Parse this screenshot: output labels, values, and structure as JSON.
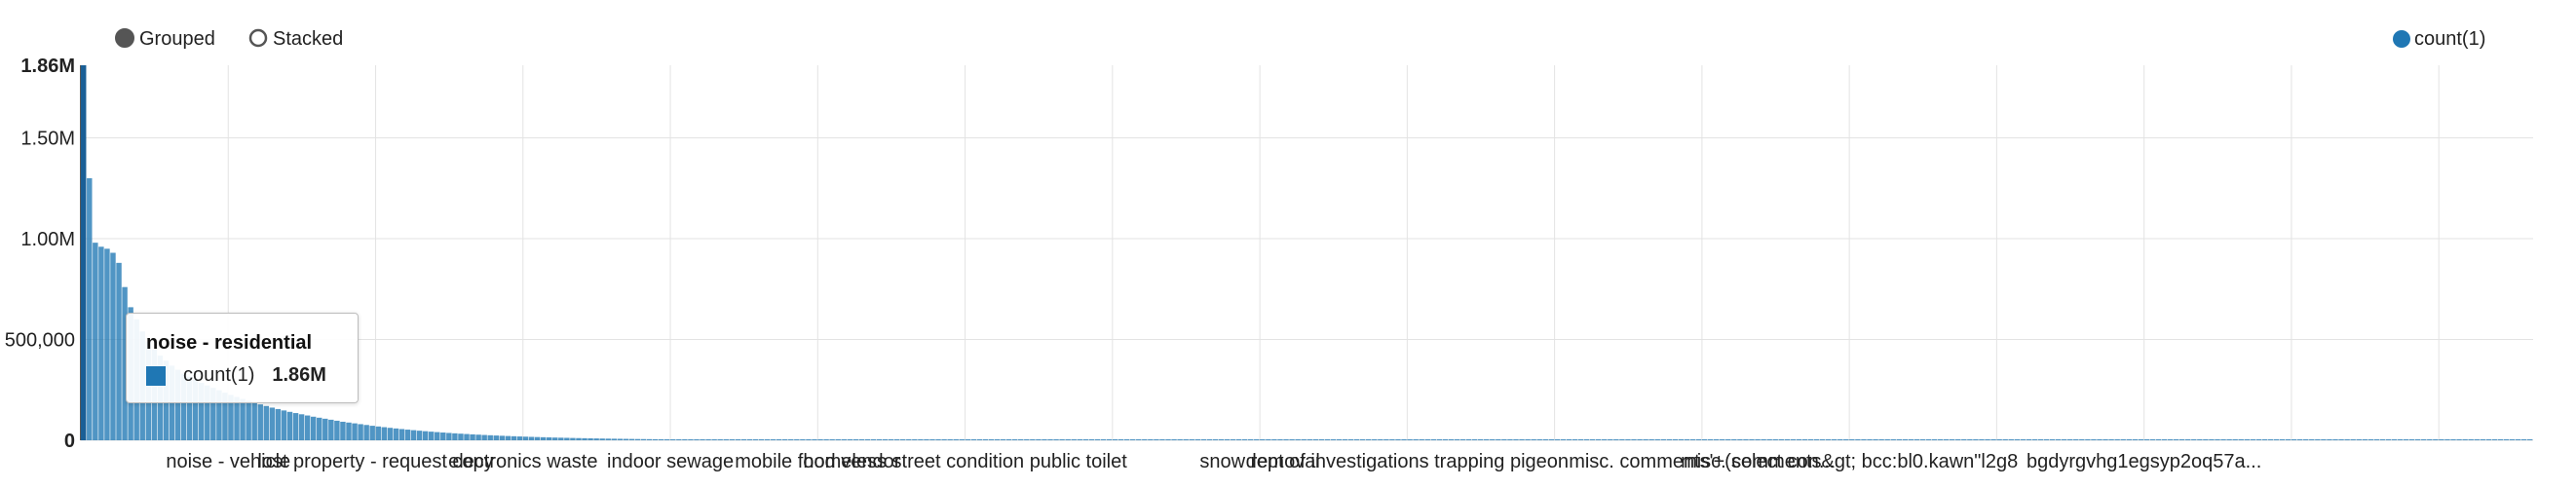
{
  "controls": {
    "grouped_label": "Grouped",
    "stacked_label": "Stacked",
    "selected": "grouped"
  },
  "legend": {
    "label": "count(1)",
    "color": "#1f77b4"
  },
  "tooltip": {
    "title": "noise - residential",
    "series": "count(1)",
    "value": "1.86M",
    "color": "#1f77b4"
  },
  "chart_data": {
    "type": "bar",
    "title": "",
    "xlabel": "",
    "ylabel": "",
    "ylim": [
      0,
      1860000
    ],
    "grid": true,
    "legend_position": "top-right",
    "y_ticks": [
      {
        "value": 0,
        "label": "0"
      },
      {
        "value": 500000,
        "label": "500,000"
      },
      {
        "value": 1000000,
        "label": "1.00M"
      },
      {
        "value": 1500000,
        "label": "1.50M"
      },
      {
        "value": 1860000,
        "label": "1.86M"
      }
    ],
    "x_tick_labels": [
      {
        "index": 25,
        "label": "noise - vehicle"
      },
      {
        "index": 50,
        "label": "lost property - request copy"
      },
      {
        "index": 75,
        "label": "electronics waste"
      },
      {
        "index": 100,
        "label": "indoor sewage"
      },
      {
        "index": 125,
        "label": "mobile food vendor"
      },
      {
        "index": 150,
        "label": "homeless street condition public toilet"
      },
      {
        "index": 200,
        "label": "snow removal"
      },
      {
        "index": 225,
        "label": "dept of investigations trapping pigeon"
      },
      {
        "index": 275,
        "label": "misc. comments'+(select con..."
      },
      {
        "index": 300,
        "label": "misc. comments&gt; bcc:bl0.kawn\"l2g8"
      },
      {
        "index": 350,
        "label": "bgdyrgvhg1egsyp2oq57a..."
      }
    ],
    "series": [
      {
        "name": "count(1)",
        "color": "#1f77b4",
        "values": [
          1860000,
          1300000,
          980000,
          960000,
          950000,
          930000,
          880000,
          760000,
          660000,
          600000,
          540000,
          490000,
          450000,
          420000,
          395000,
          370000,
          350000,
          330000,
          315000,
          300000,
          285000,
          272000,
          260000,
          248000,
          236000,
          225000,
          215000,
          205000,
          196000,
          187000,
          178000,
          170000,
          162000,
          155000,
          148000,
          141000,
          135000,
          129000,
          123000,
          117000,
          112000,
          107000,
          102000,
          97000,
          92000,
          88000,
          84000,
          80000,
          76000,
          72000,
          68500,
          65000,
          61800,
          58700,
          55700,
          52900,
          50200,
          47600,
          45100,
          42800,
          40600,
          38500,
          36500,
          34600,
          32800,
          31100,
          29500,
          27900,
          26400,
          25000,
          23700,
          22400,
          21200,
          20100,
          19000,
          18000,
          17000,
          16100,
          15200,
          14400,
          13600,
          12900,
          12200,
          11500,
          10900,
          10300,
          9700,
          9200,
          8700,
          8200,
          7800,
          7400,
          7000,
          6600,
          6200,
          5900,
          5600,
          5300,
          5000,
          4700,
          4450,
          4200,
          3980,
          3760,
          3550,
          3360,
          3170,
          3000,
          2830,
          2680,
          2530,
          2390,
          2260,
          2140,
          2020,
          1910,
          1800,
          1700,
          1610,
          1520,
          1440,
          1360,
          1280,
          1210,
          1150,
          1080,
          1020,
          970,
          910,
          860,
          820,
          770,
          730,
          690,
          650,
          620,
          580,
          550,
          520,
          490,
          470,
          440,
          420,
          390,
          370,
          350,
          330,
          310,
          300,
          280,
          260,
          250,
          240,
          220,
          210,
          200,
          190,
          180,
          170,
          160,
          150,
          145,
          137,
          129,
          122,
          115,
          109,
          103,
          97,
          92,
          87,
          82,
          77,
          73,
          69,
          65,
          62,
          58,
          55,
          52,
          49,
          46,
          44,
          41,
          39,
          37,
          35,
          33,
          31,
          29,
          28,
          26,
          25,
          23,
          22,
          21,
          20,
          19,
          18,
          17,
          16,
          15,
          14,
          13,
          13,
          12,
          11,
          11,
          10,
          10,
          9,
          9,
          8,
          8,
          7,
          7,
          7,
          6,
          6,
          6,
          5,
          5,
          5,
          5,
          4,
          4,
          4,
          4,
          4,
          3,
          3,
          3,
          3,
          3,
          3,
          3,
          2,
          2,
          2,
          2,
          2,
          2,
          2,
          2,
          2,
          2,
          2,
          2,
          2,
          2,
          2,
          2,
          2,
          2,
          1,
          1,
          1,
          1,
          1,
          1,
          1,
          1,
          1,
          1,
          1,
          1,
          1,
          1,
          1,
          1,
          1,
          1,
          1,
          1,
          1,
          1,
          1,
          1,
          1,
          1,
          1,
          1,
          1,
          1,
          1,
          1,
          1,
          1,
          1,
          1,
          1,
          1,
          1,
          1,
          1,
          1,
          1,
          1,
          1,
          1,
          1,
          1,
          1,
          1,
          1,
          1,
          1,
          1,
          1,
          1,
          1,
          1,
          1,
          1,
          1,
          1,
          1,
          1,
          1,
          1,
          1,
          1,
          1,
          1,
          1,
          1,
          1,
          1,
          1,
          1,
          1,
          1,
          1,
          1,
          1,
          1,
          1,
          1,
          1,
          1,
          1,
          1,
          1,
          1,
          1,
          1,
          1,
          1,
          1,
          1,
          1,
          1,
          1,
          1,
          1,
          1,
          1,
          1,
          1,
          1,
          1,
          1,
          1,
          1,
          1,
          1,
          1,
          1,
          1,
          1,
          1,
          1,
          1,
          1,
          1,
          1,
          1,
          1,
          1,
          1,
          1,
          1,
          1,
          1,
          1,
          1,
          1,
          1,
          1,
          1,
          1,
          1,
          1,
          1,
          1,
          1,
          1,
          1,
          1,
          1,
          1,
          1,
          1,
          1,
          1,
          1,
          1,
          1,
          1,
          1,
          1,
          1,
          1,
          1,
          1,
          1
        ]
      }
    ]
  }
}
